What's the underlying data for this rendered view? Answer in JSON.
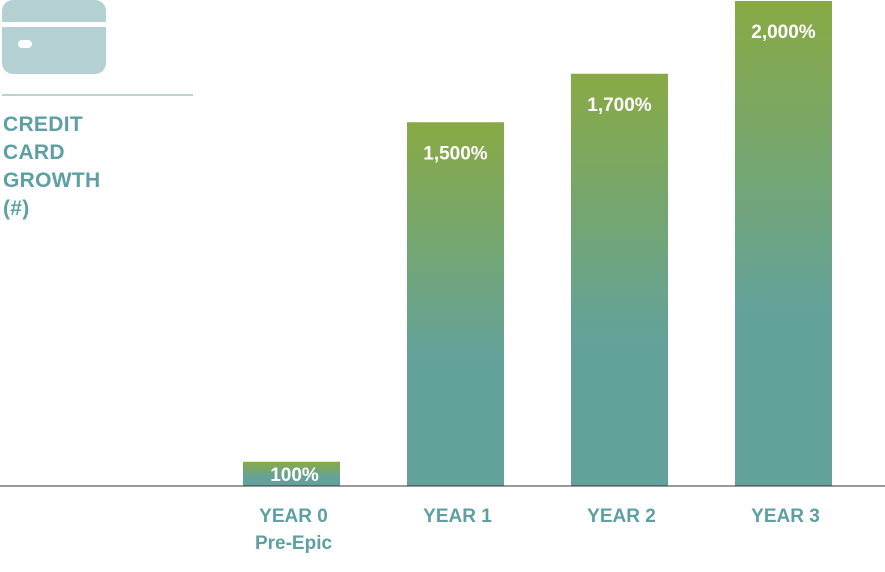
{
  "icon": {
    "name": "credit-card-icon",
    "color": "#b4d0d2"
  },
  "colors": {
    "bar_top": "#88aa44",
    "bar_bottom": "#63a29b",
    "title": "#5d9fa2",
    "axis": "#333333",
    "divider": "#b9d2d4"
  },
  "chart_data": {
    "type": "bar",
    "title_lines": [
      "CREDIT",
      "CARD",
      "GROWTH",
      "(#)"
    ],
    "categories": [
      [
        "YEAR 0",
        "Pre-Epic"
      ],
      [
        "YEAR 1"
      ],
      [
        "YEAR 2"
      ],
      [
        "YEAR 3"
      ]
    ],
    "values": [
      100,
      1500,
      1700,
      2000
    ],
    "data_labels": [
      "100%",
      "1,500%",
      "1,700%",
      "2,000%"
    ],
    "ylim": [
      0,
      2000
    ],
    "grid": false,
    "legend": false
  }
}
